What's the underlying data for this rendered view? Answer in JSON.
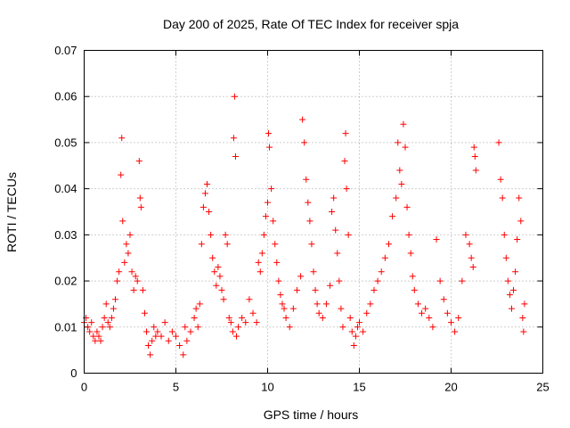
{
  "chart_data": {
    "type": "scatter",
    "title": "Day 200 of 2025, Rate Of TEC Index for receiver spja",
    "xlabel": "GPS time / hours",
    "ylabel": "ROTI / TECUs",
    "xlim": [
      0,
      25
    ],
    "ylim": [
      0,
      0.07
    ],
    "xticks": [
      0,
      5,
      10,
      15,
      20,
      25
    ],
    "xtick_labels": [
      "0",
      "5",
      "10",
      "15",
      "20",
      "25"
    ],
    "yticks": [
      0,
      0.01,
      0.02,
      0.03,
      0.04,
      0.05,
      0.06,
      0.07
    ],
    "ytick_labels": [
      "0",
      "0.01",
      "0.02",
      "0.03",
      "0.04",
      "0.05",
      "0.06",
      "0.07"
    ],
    "grid": true,
    "marker": "plus",
    "color": "#ff0000",
    "series": [
      {
        "name": "ROTI",
        "points": [
          [
            0.0,
            0.011
          ],
          [
            0.1,
            0.012
          ],
          [
            0.2,
            0.01
          ],
          [
            0.3,
            0.009
          ],
          [
            0.4,
            0.011
          ],
          [
            0.5,
            0.008
          ],
          [
            0.6,
            0.007
          ],
          [
            0.7,
            0.009
          ],
          [
            0.8,
            0.008
          ],
          [
            0.9,
            0.007
          ],
          [
            1.0,
            0.01
          ],
          [
            1.1,
            0.012
          ],
          [
            1.2,
            0.015
          ],
          [
            1.3,
            0.011
          ],
          [
            1.4,
            0.01
          ],
          [
            1.5,
            0.012
          ],
          [
            1.6,
            0.014
          ],
          [
            1.7,
            0.016
          ],
          [
            1.8,
            0.02
          ],
          [
            1.9,
            0.022
          ],
          [
            2.0,
            0.043
          ],
          [
            2.05,
            0.051
          ],
          [
            2.1,
            0.033
          ],
          [
            2.2,
            0.024
          ],
          [
            2.3,
            0.028
          ],
          [
            2.4,
            0.026
          ],
          [
            2.5,
            0.03
          ],
          [
            2.6,
            0.022
          ],
          [
            2.7,
            0.018
          ],
          [
            2.8,
            0.021
          ],
          [
            2.9,
            0.02
          ],
          [
            3.0,
            0.046
          ],
          [
            3.05,
            0.038
          ],
          [
            3.1,
            0.036
          ],
          [
            3.2,
            0.018
          ],
          [
            3.3,
            0.013
          ],
          [
            3.4,
            0.009
          ],
          [
            3.5,
            0.006
          ],
          [
            3.6,
            0.004
          ],
          [
            3.7,
            0.007
          ],
          [
            3.8,
            0.01
          ],
          [
            3.9,
            0.008
          ],
          [
            4.0,
            0.009
          ],
          [
            4.2,
            0.008
          ],
          [
            4.4,
            0.011
          ],
          [
            4.6,
            0.007
          ],
          [
            4.8,
            0.009
          ],
          [
            5.0,
            0.008
          ],
          [
            5.2,
            0.006
          ],
          [
            5.4,
            0.004
          ],
          [
            5.5,
            0.01
          ],
          [
            5.6,
            0.007
          ],
          [
            5.8,
            0.009
          ],
          [
            6.0,
            0.012
          ],
          [
            6.1,
            0.014
          ],
          [
            6.2,
            0.01
          ],
          [
            6.3,
            0.015
          ],
          [
            6.4,
            0.028
          ],
          [
            6.5,
            0.036
          ],
          [
            6.6,
            0.039
          ],
          [
            6.7,
            0.041
          ],
          [
            6.8,
            0.035
          ],
          [
            6.9,
            0.03
          ],
          [
            7.0,
            0.025
          ],
          [
            7.1,
            0.022
          ],
          [
            7.2,
            0.019
          ],
          [
            7.3,
            0.023
          ],
          [
            7.4,
            0.021
          ],
          [
            7.5,
            0.018
          ],
          [
            7.6,
            0.016
          ],
          [
            7.7,
            0.03
          ],
          [
            7.8,
            0.028
          ],
          [
            7.9,
            0.012
          ],
          [
            8.0,
            0.011
          ],
          [
            8.1,
            0.009
          ],
          [
            8.15,
            0.051
          ],
          [
            8.2,
            0.06
          ],
          [
            8.25,
            0.047
          ],
          [
            8.3,
            0.008
          ],
          [
            8.4,
            0.01
          ],
          [
            8.6,
            0.012
          ],
          [
            8.8,
            0.011
          ],
          [
            9.0,
            0.016
          ],
          [
            9.2,
            0.013
          ],
          [
            9.4,
            0.011
          ],
          [
            9.5,
            0.024
          ],
          [
            9.6,
            0.022
          ],
          [
            9.7,
            0.026
          ],
          [
            9.8,
            0.03
          ],
          [
            9.9,
            0.034
          ],
          [
            10.0,
            0.037
          ],
          [
            10.05,
            0.052
          ],
          [
            10.1,
            0.049
          ],
          [
            10.2,
            0.04
          ],
          [
            10.3,
            0.033
          ],
          [
            10.4,
            0.028
          ],
          [
            10.5,
            0.024
          ],
          [
            10.6,
            0.02
          ],
          [
            10.7,
            0.017
          ],
          [
            10.8,
            0.015
          ],
          [
            10.9,
            0.014
          ],
          [
            11.0,
            0.012
          ],
          [
            11.2,
            0.01
          ],
          [
            11.4,
            0.014
          ],
          [
            11.6,
            0.018
          ],
          [
            11.8,
            0.021
          ],
          [
            11.9,
            0.055
          ],
          [
            12.0,
            0.05
          ],
          [
            12.1,
            0.042
          ],
          [
            12.2,
            0.037
          ],
          [
            12.3,
            0.033
          ],
          [
            12.4,
            0.028
          ],
          [
            12.5,
            0.022
          ],
          [
            12.6,
            0.018
          ],
          [
            12.7,
            0.015
          ],
          [
            12.8,
            0.013
          ],
          [
            13.0,
            0.012
          ],
          [
            13.2,
            0.015
          ],
          [
            13.4,
            0.019
          ],
          [
            13.5,
            0.035
          ],
          [
            13.6,
            0.038
          ],
          [
            13.7,
            0.031
          ],
          [
            13.8,
            0.026
          ],
          [
            13.9,
            0.02
          ],
          [
            14.0,
            0.014
          ],
          [
            14.1,
            0.01
          ],
          [
            14.2,
            0.046
          ],
          [
            14.25,
            0.052
          ],
          [
            14.3,
            0.04
          ],
          [
            14.4,
            0.03
          ],
          [
            14.5,
            0.012
          ],
          [
            14.6,
            0.009
          ],
          [
            14.7,
            0.006
          ],
          [
            14.8,
            0.008
          ],
          [
            14.9,
            0.01
          ],
          [
            15.0,
            0.011
          ],
          [
            15.2,
            0.009
          ],
          [
            15.4,
            0.013
          ],
          [
            15.6,
            0.015
          ],
          [
            15.8,
            0.018
          ],
          [
            16.0,
            0.02
          ],
          [
            16.2,
            0.022
          ],
          [
            16.4,
            0.025
          ],
          [
            16.6,
            0.028
          ],
          [
            16.8,
            0.034
          ],
          [
            17.0,
            0.038
          ],
          [
            17.1,
            0.05
          ],
          [
            17.2,
            0.044
          ],
          [
            17.3,
            0.041
          ],
          [
            17.4,
            0.054
          ],
          [
            17.5,
            0.049
          ],
          [
            17.6,
            0.036
          ],
          [
            17.7,
            0.03
          ],
          [
            17.8,
            0.026
          ],
          [
            17.9,
            0.021
          ],
          [
            18.0,
            0.018
          ],
          [
            18.2,
            0.015
          ],
          [
            18.4,
            0.013
          ],
          [
            18.6,
            0.014
          ],
          [
            18.8,
            0.012
          ],
          [
            19.0,
            0.01
          ],
          [
            19.2,
            0.029
          ],
          [
            19.4,
            0.02
          ],
          [
            19.6,
            0.016
          ],
          [
            19.8,
            0.013
          ],
          [
            20.0,
            0.011
          ],
          [
            20.2,
            0.009
          ],
          [
            20.4,
            0.012
          ],
          [
            20.6,
            0.02
          ],
          [
            20.8,
            0.03
          ],
          [
            21.0,
            0.028
          ],
          [
            21.1,
            0.025
          ],
          [
            21.2,
            0.023
          ],
          [
            21.25,
            0.049
          ],
          [
            21.3,
            0.047
          ],
          [
            21.35,
            0.044
          ],
          [
            22.6,
            0.05
          ],
          [
            22.7,
            0.042
          ],
          [
            22.8,
            0.038
          ],
          [
            22.9,
            0.03
          ],
          [
            23.0,
            0.025
          ],
          [
            23.1,
            0.02
          ],
          [
            23.2,
            0.017
          ],
          [
            23.3,
            0.014
          ],
          [
            23.4,
            0.018
          ],
          [
            23.5,
            0.022
          ],
          [
            23.6,
            0.029
          ],
          [
            23.7,
            0.038
          ],
          [
            23.8,
            0.033
          ],
          [
            23.9,
            0.012
          ],
          [
            23.95,
            0.009
          ],
          [
            24.0,
            0.015
          ]
        ]
      }
    ]
  }
}
